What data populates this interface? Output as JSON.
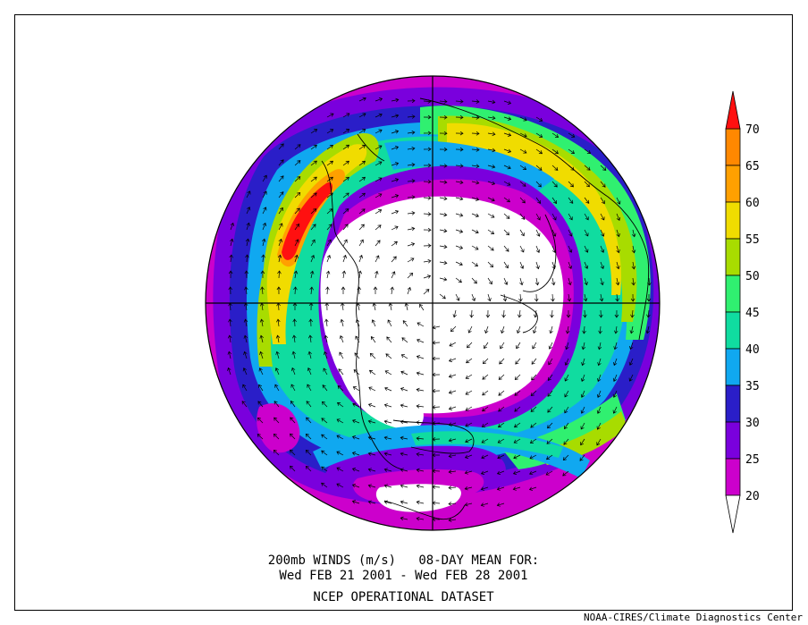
{
  "map": {
    "title_line1": "200mb WINDS (m/s)   08-DAY MEAN FOR:",
    "title_line2": "Wed FEB 21 2001 - Wed FEB 28 2001",
    "dataset": "NCEP OPERATIONAL DATASET",
    "credit": "NOAA-CIRES/Climate Diagnostics Center",
    "projection": "north polar stereographic",
    "variable": "200mb wind speed with wind vectors"
  },
  "colorbar": {
    "labels": [
      "20",
      "25",
      "30",
      "35",
      "40",
      "45",
      "50",
      "55",
      "60",
      "65",
      "70"
    ],
    "colors": [
      "#ffffff",
      "#cc00cc",
      "#7a00dd",
      "#2a1ec8",
      "#10a8f0",
      "#10dca0",
      "#30f070",
      "#a8dc00",
      "#f0dc00",
      "#ffa000",
      "#ff8800",
      "#ff1010"
    ]
  },
  "palette": {
    "white": "#ffffff",
    "magenta": "#cc00cc",
    "purple": "#7a00dd",
    "blue": "#2a1ec8",
    "sky": "#10a8f0",
    "aqua": "#10dca0",
    "green": "#30f070",
    "yellowgreen": "#a8dc00",
    "yellow": "#f0dc00",
    "orange": "#ffa000",
    "red": "#ff1010"
  }
}
